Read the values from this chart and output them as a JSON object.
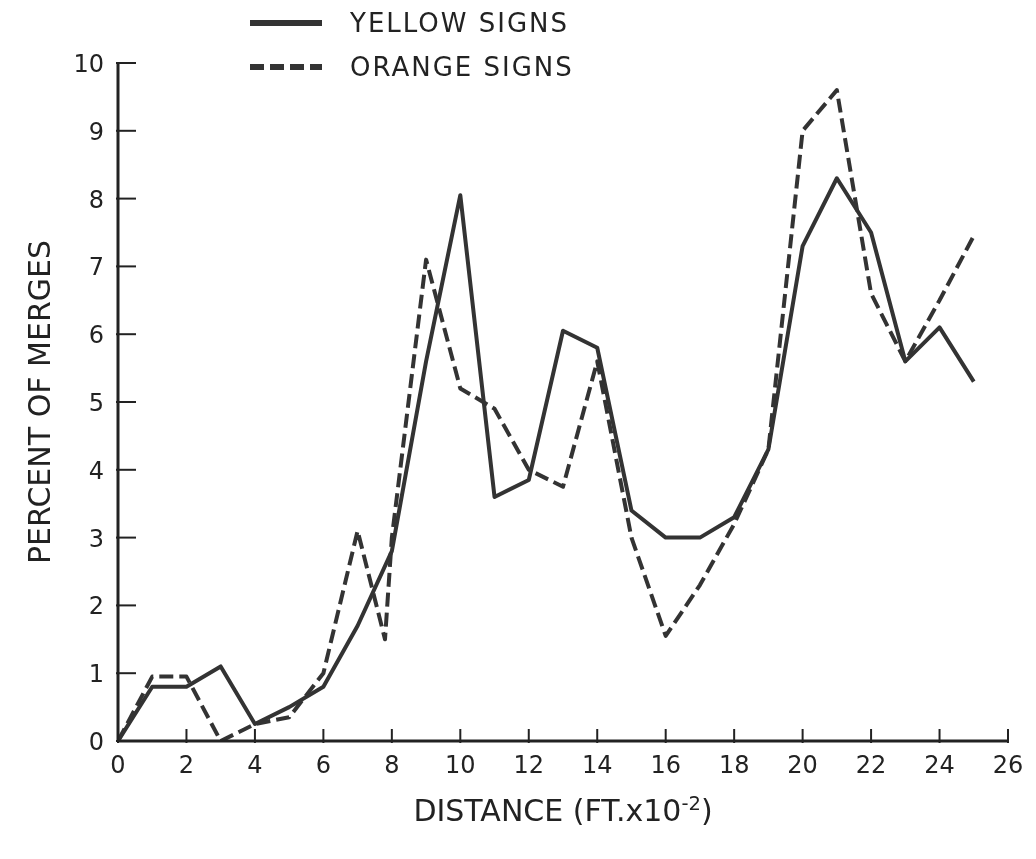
{
  "chart_data": {
    "type": "line",
    "xlabel": "DISTANCE (FT.x10$^{-2}$)",
    "ylabel": "PERCENT OF MERGES",
    "xlim": [
      0,
      26
    ],
    "xticks": [
      0,
      2,
      4,
      6,
      8,
      10,
      12,
      14,
      16,
      18,
      20,
      22,
      24,
      26
    ],
    "ylim": [
      0,
      10
    ],
    "yticks": [
      0,
      1,
      2,
      3,
      4,
      5,
      6,
      7,
      8,
      9,
      10
    ],
    "grid": false,
    "legend": "top left",
    "marker": "none",
    "series": [
      {
        "name": "YELLOW SIGNS",
        "color": "#333333",
        "line_style": "solid",
        "x": [
          0,
          1,
          2,
          3,
          4,
          5,
          6,
          7,
          8,
          9,
          10,
          11,
          12,
          13,
          14,
          15,
          16,
          17,
          18,
          19,
          20,
          21,
          22,
          23,
          24,
          25
        ],
        "values": [
          0,
          0.8,
          0.8,
          1.1,
          0.25,
          0.5,
          0.8,
          1.7,
          2.8,
          5.6,
          8.05,
          3.6,
          3.85,
          6.05,
          5.8,
          3.4,
          3.0,
          3.0,
          3.3,
          4.3,
          7.3,
          8.3,
          7.5,
          5.6,
          6.1,
          5.3
        ]
      },
      {
        "name": "ORANGE SIGNS",
        "color": "#333333",
        "line_style": "dashed",
        "x": [
          0,
          1,
          2,
          3,
          4,
          5,
          6,
          7,
          7.8,
          8,
          9,
          10,
          11,
          12,
          13,
          14,
          15,
          16,
          17,
          18,
          19,
          20,
          21,
          22,
          23,
          24,
          25
        ],
        "values": [
          0,
          0.95,
          0.95,
          0,
          0.25,
          0.35,
          1.0,
          3.1,
          1.5,
          3.0,
          7.1,
          5.2,
          4.9,
          4.0,
          3.75,
          5.6,
          3.0,
          1.55,
          2.3,
          3.2,
          4.3,
          9.0,
          9.6,
          6.6,
          5.6,
          6.5,
          7.45
        ]
      }
    ]
  }
}
